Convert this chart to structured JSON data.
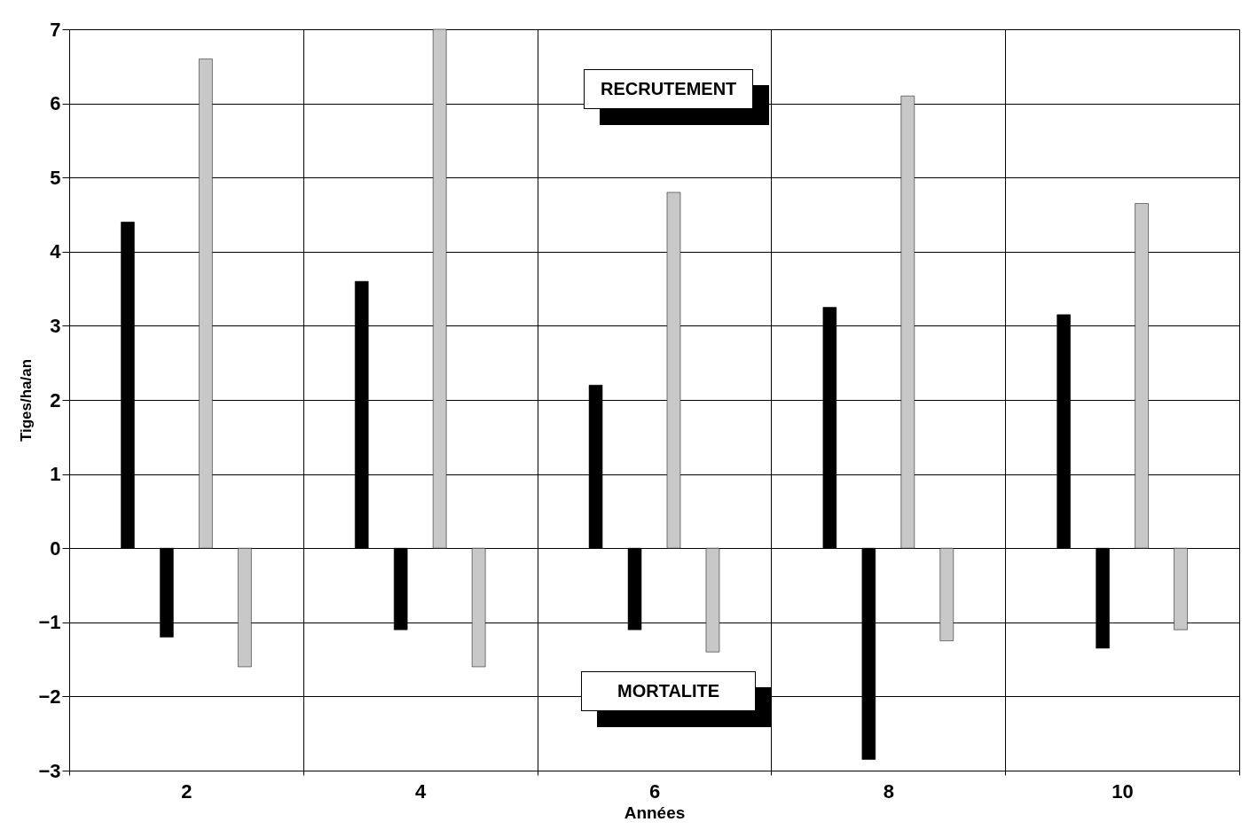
{
  "chart_data": {
    "type": "bar",
    "xlabel": "Années",
    "ylabel": "Tiges/ha/an",
    "categories": [
      "2",
      "4",
      "6",
      "8",
      "10"
    ],
    "series": [
      {
        "color": "#000000",
        "values": [
          4.4,
          3.6,
          2.2,
          3.25,
          3.15
        ]
      },
      {
        "color": "#000000",
        "values": [
          -1.2,
          -1.1,
          -1.1,
          -2.85,
          -1.35
        ]
      },
      {
        "color": "#c8c8c8",
        "values": [
          6.6,
          7.0,
          4.8,
          6.1,
          4.65
        ]
      },
      {
        "color": "#c8c8c8",
        "values": [
          -1.6,
          -1.6,
          -1.4,
          -1.25,
          -1.1
        ]
      }
    ],
    "ylim": [
      -3,
      7
    ],
    "yticks": [
      -3,
      -2,
      -1,
      0,
      1,
      2,
      3,
      4,
      5,
      6,
      7
    ],
    "grid": true,
    "annotations": [
      "RECRUTEMENT",
      "MORTALITE"
    ]
  }
}
